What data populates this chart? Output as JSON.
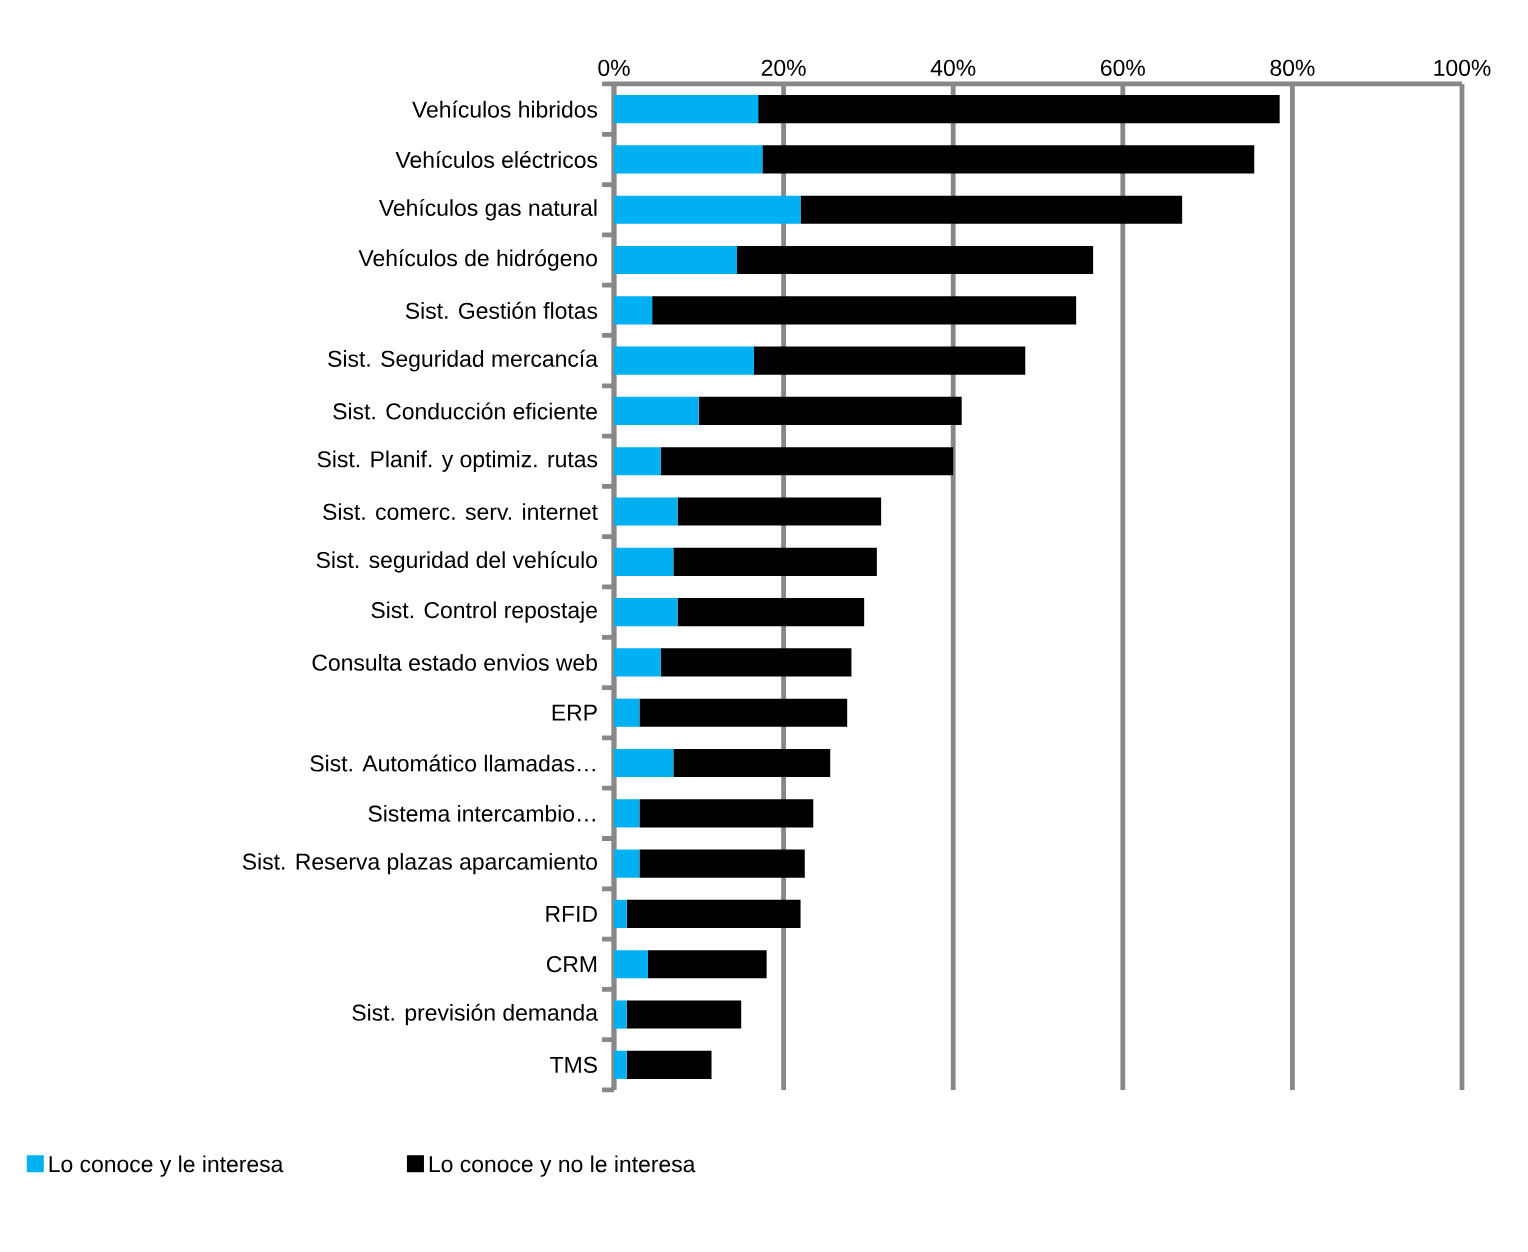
{
  "chart_data": {
    "type": "bar",
    "orientation": "horizontal",
    "stacked": true,
    "categories": [
      "Vehículos hibridos",
      "Vehículos eléctricos",
      "Vehículos gas natural",
      "Vehículos de hidrógeno",
      "Sist. Gestión flotas",
      "Sist. Seguridad mercancía",
      "Sist. Conducción eficiente",
      "Sist. Planif. y optimiz. rutas",
      "Sist. comerc. serv. internet",
      "Sist. seguridad del vehículo",
      "Sist. Control repostaje",
      "Consulta estado envios web",
      "ERP",
      "Sist. Automático llamadas…",
      "Sistema intercambio…",
      "Sist. Reserva plazas aparcamiento",
      "RFID",
      "CRM",
      "Sist. previsión demanda",
      "TMS"
    ],
    "series": [
      {
        "name": "Lo conoce y le interesa",
        "color": "#00b0f0",
        "values": [
          17,
          17.5,
          22,
          14.5,
          4.5,
          16.5,
          10,
          5.5,
          7.5,
          7,
          7.5,
          5.5,
          3,
          7,
          3,
          3,
          1.5,
          4,
          1.5,
          1.5
        ]
      },
      {
        "name": "Lo conoce y no le interesa",
        "color": "#000000",
        "values": [
          61.5,
          58,
          45,
          42,
          50,
          32,
          31,
          34.5,
          24,
          24,
          22,
          22.5,
          24.5,
          18.5,
          20.5,
          19.5,
          20.5,
          14,
          13.5,
          10
        ]
      }
    ],
    "xlim": [
      0,
      100
    ],
    "xticks": [
      {
        "value": 0,
        "label": "0%"
      },
      {
        "value": 20,
        "label": "20%"
      },
      {
        "value": 40,
        "label": "40%"
      },
      {
        "value": 60,
        "label": "60%"
      },
      {
        "value": 80,
        "label": "80%"
      },
      {
        "value": 100,
        "label": "100%"
      }
    ],
    "grid": "x",
    "legend": "bottom"
  }
}
